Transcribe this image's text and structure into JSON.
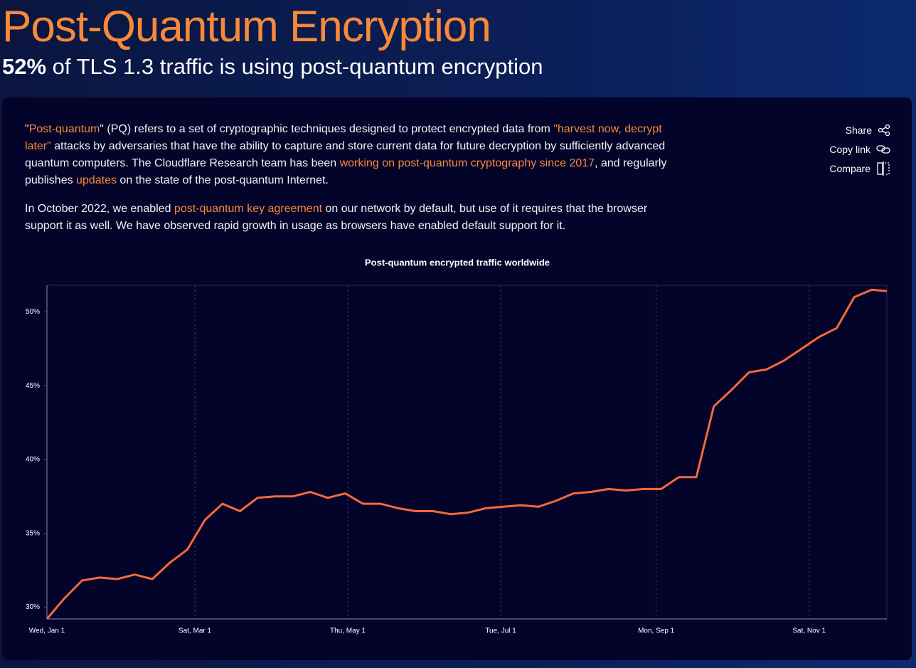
{
  "header": {
    "title": "Post-Quantum Encryption",
    "subtitle": {
      "highlight": "52%",
      "text": "of TLS 1.3 traffic is using post-quantum encryption"
    }
  },
  "paragraphs": [
    [
      {
        "text": "\"",
        "link": false
      },
      {
        "text": "Post-quantum",
        "link": true
      },
      {
        "text": "\" (PQ) refers to a set of cryptographic techniques designed to protect encrypted data from ",
        "link": false
      },
      {
        "text": "\"harvest now, decrypt later\"",
        "link": true
      },
      {
        "text": " attacks by adversaries that have the ability to capture and store current data for future decryption by sufficiently advanced quantum computers. The Cloudflare Research team has been ",
        "link": false
      },
      {
        "text": "working on post-quantum cryptography since 2017",
        "link": true
      },
      {
        "text": ", and regularly publishes ",
        "link": false
      },
      {
        "text": "updates",
        "link": true
      },
      {
        "text": " on the state of the post-quantum Internet.",
        "link": false
      }
    ],
    [
      {
        "text": "In October 2022, we enabled ",
        "link": false
      },
      {
        "text": "post-quantum key agreement",
        "link": true
      },
      {
        "text": " on our network by default, but use of it requires that the browser support it as well. We have observed rapid growth in usage as browsers have enabled default support for it.",
        "link": false
      }
    ]
  ],
  "actions": [
    "Share",
    "Copy link",
    "Compare"
  ],
  "chart_data": {
    "type": "line",
    "title": "Post-quantum encrypted traffic worldwide",
    "color": "#f4693b",
    "x": [
      "Wed, Jan 1",
      "Wed, Jan 8",
      "Wed, Jan 15",
      "Wed, Jan 22",
      "Wed, Jan 29",
      "Wed, Feb 5",
      "Wed, Feb 12",
      "Wed, Feb 19",
      "Wed, Feb 26",
      "Wed, Mar 5",
      "Wed, Mar 12",
      "Wed, Mar 19",
      "Wed, Mar 26",
      "Wed, Apr 2",
      "Wed, Apr 9",
      "Wed, Apr 16",
      "Wed, Apr 23",
      "Wed, Apr 30",
      "Wed, May 7",
      "Wed, May 14",
      "Wed, May 21",
      "Wed, May 28",
      "Wed, Jun 4",
      "Wed, Jun 11",
      "Wed, Jun 18",
      "Wed, Jun 25",
      "Wed, Jul 2",
      "Wed, Jul 9",
      "Wed, Jul 16",
      "Wed, Jul 23",
      "Wed, Jul 30",
      "Wed, Aug 6",
      "Wed, Aug 13",
      "Wed, Aug 20",
      "Wed, Aug 27",
      "Wed, Sep 3",
      "Wed, Sep 10",
      "Wed, Sep 17",
      "Wed, Sep 24",
      "Wed, Oct 1",
      "Wed, Oct 8",
      "Wed, Oct 15",
      "Wed, Oct 22",
      "Wed, Oct 29",
      "Wed, Nov 5",
      "Wed, Nov 12",
      "Wed, Nov 19",
      "Wed, Nov 26",
      "Tue, Dec 2"
    ],
    "values": [
      29.2,
      30.6,
      31.8,
      32.0,
      31.9,
      32.2,
      31.9,
      33.0,
      33.9,
      35.9,
      37.0,
      36.5,
      37.4,
      37.5,
      37.5,
      37.8,
      37.4,
      37.7,
      37.0,
      37.0,
      36.7,
      36.5,
      36.5,
      36.3,
      36.4,
      36.7,
      36.8,
      36.9,
      36.8,
      37.2,
      37.7,
      37.8,
      38.0,
      37.9,
      38.0,
      38.0,
      38.8,
      38.8,
      43.6,
      44.7,
      45.9,
      46.1,
      46.7,
      47.5,
      48.3,
      48.9,
      51.0,
      51.5,
      51.4
    ],
    "xlim": [
      "Wed, Jan 1",
      "Tue, Dec 2"
    ],
    "xticks": [
      "Wed, Jan 1",
      "Sat, Mar 1",
      "Thu, May 1",
      "Tue, Jul 1",
      "Mon, Sep 1",
      "Sat, Nov 1"
    ],
    "ylim": [
      29.2,
      51.8
    ],
    "yticks": [
      {
        "value": 30,
        "label": "30%"
      },
      {
        "value": 35,
        "label": "35%"
      },
      {
        "value": 40,
        "label": "40%"
      },
      {
        "value": 45,
        "label": "45%"
      },
      {
        "value": 50,
        "label": "50%"
      }
    ],
    "grid": true
  }
}
